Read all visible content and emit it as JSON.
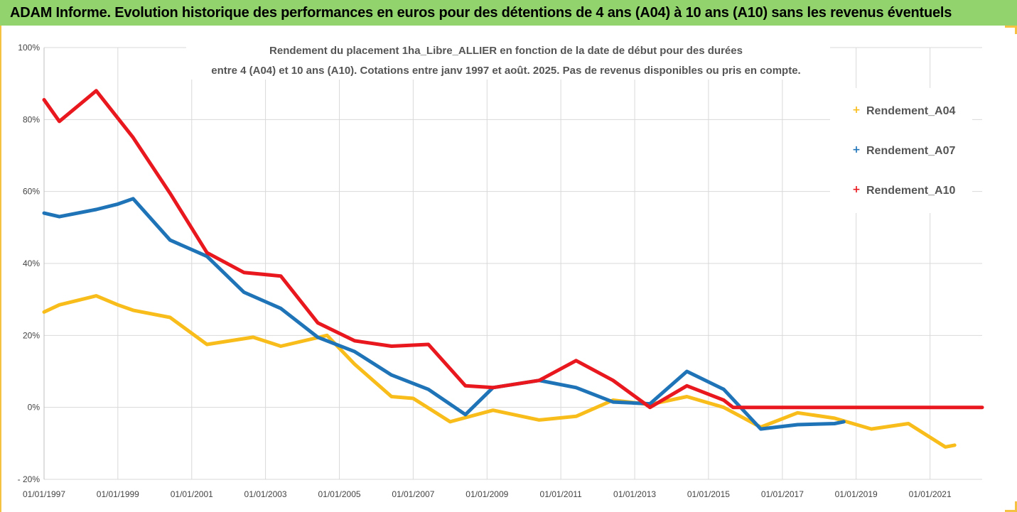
{
  "banner": {
    "title": "ADAM Informe. Evolution historique des performances en euros pour des détentions de 4 ans (A04) à 10 ans (A10) sans les revenus éventuels"
  },
  "colors": {
    "banner_bg": "#92d36e",
    "frame": "#f5c242",
    "A04": "#f8bd1a",
    "A07": "#1f74b8",
    "A10": "#e8181e",
    "grid": "#d9d9d9"
  },
  "chart_data": {
    "type": "line",
    "title_lines": [
      "Rendement du placement 1ha_Libre_ALLIER en fonction de la date de début pour des durées",
      "entre 4 (A04) et 10 ans (A10). Cotations entre janv 1997 et août. 2025. Pas de revenus disponibles ou pris en compte."
    ],
    "xlabel": "",
    "ylabel": "",
    "ylim": [
      -20,
      100
    ],
    "xlim": [
      "1997-01-01",
      "2022-06-01"
    ],
    "y_ticks": [
      "100%",
      "80%",
      "60%",
      "40%",
      "20%",
      "0%",
      "- 20%"
    ],
    "y_tick_values": [
      100,
      80,
      60,
      40,
      20,
      0,
      -20
    ],
    "x_ticks": [
      "01/01/1997",
      "01/01/1999",
      "01/01/2001",
      "01/01/2003",
      "01/01/2005",
      "01/01/2007",
      "01/01/2009",
      "01/01/2011",
      "01/01/2013",
      "01/01/2015",
      "01/01/2017",
      "01/01/2019",
      "01/01/2021"
    ],
    "x_tick_values": [
      "1997-01-01",
      "1999-01-01",
      "2001-01-01",
      "2003-01-01",
      "2005-01-01",
      "2007-01-01",
      "2009-01-01",
      "2011-01-01",
      "2013-01-01",
      "2015-01-01",
      "2017-01-01",
      "2019-01-01",
      "2021-01-01"
    ],
    "grid": true,
    "legend_position": "right",
    "series": [
      {
        "name": "Rendement_A04",
        "color": "#f8bd1a",
        "points": [
          [
            "1997-01-01",
            26.5
          ],
          [
            "1997-06-01",
            28.5
          ],
          [
            "1998-06-01",
            31.0
          ],
          [
            "1999-01-01",
            28.5
          ],
          [
            "1999-06-01",
            27.0
          ],
          [
            "2000-06-01",
            25.0
          ],
          [
            "2001-06-01",
            17.5
          ],
          [
            "2002-09-01",
            19.5
          ],
          [
            "2003-06-01",
            17.0
          ],
          [
            "2004-09-01",
            20.0
          ],
          [
            "2005-06-01",
            12.0
          ],
          [
            "2006-06-01",
            3.0
          ],
          [
            "2007-01-01",
            2.5
          ],
          [
            "2008-01-01",
            -4.0
          ],
          [
            "2009-03-01",
            -0.8
          ],
          [
            "2010-06-01",
            -3.5
          ],
          [
            "2011-06-01",
            -2.5
          ],
          [
            "2012-06-01",
            2.0
          ],
          [
            "2013-06-01",
            0.8
          ],
          [
            "2014-06-01",
            3.0
          ],
          [
            "2015-06-01",
            0.0
          ],
          [
            "2016-06-01",
            -5.5
          ],
          [
            "2017-06-01",
            -1.5
          ],
          [
            "2018-06-01",
            -3.0
          ],
          [
            "2019-06-01",
            -6.0
          ],
          [
            "2020-06-01",
            -4.5
          ],
          [
            "2021-06-01",
            -11.0
          ],
          [
            "2021-09-01",
            -10.5
          ]
        ]
      },
      {
        "name": "Rendement_A07",
        "color": "#1f74b8",
        "points": [
          [
            "1997-01-01",
            54.0
          ],
          [
            "1997-06-01",
            53.0
          ],
          [
            "1998-06-01",
            55.0
          ],
          [
            "1999-01-01",
            56.5
          ],
          [
            "1999-06-01",
            58.0
          ],
          [
            "2000-06-01",
            46.5
          ],
          [
            "2001-06-01",
            42.0
          ],
          [
            "2002-06-01",
            32.0
          ],
          [
            "2003-06-01",
            27.5
          ],
          [
            "2004-06-01",
            19.5
          ],
          [
            "2005-06-01",
            15.5
          ],
          [
            "2006-06-01",
            9.0
          ],
          [
            "2007-06-01",
            5.0
          ],
          [
            "2008-06-01",
            -2.0
          ],
          [
            "2009-03-01",
            5.5
          ],
          [
            "2010-06-01",
            7.5
          ],
          [
            "2011-06-01",
            5.5
          ],
          [
            "2012-06-01",
            1.5
          ],
          [
            "2013-06-01",
            1.0
          ],
          [
            "2014-06-01",
            10.0
          ],
          [
            "2015-06-01",
            5.0
          ],
          [
            "2016-06-01",
            -6.0
          ],
          [
            "2017-06-01",
            -4.8
          ],
          [
            "2018-06-01",
            -4.5
          ],
          [
            "2018-09-01",
            -4.0
          ]
        ]
      },
      {
        "name": "Rendement_A10",
        "color": "#e8181e",
        "points": [
          [
            "1997-01-01",
            85.5
          ],
          [
            "1997-06-01",
            79.5
          ],
          [
            "1998-06-01",
            88.0
          ],
          [
            "1999-06-01",
            75.0
          ],
          [
            "2000-06-01",
            59.5
          ],
          [
            "2001-06-01",
            43.0
          ],
          [
            "2002-06-01",
            37.5
          ],
          [
            "2003-06-01",
            36.5
          ],
          [
            "2004-06-01",
            23.5
          ],
          [
            "2005-06-01",
            18.5
          ],
          [
            "2006-06-01",
            17.0
          ],
          [
            "2007-06-01",
            17.5
          ],
          [
            "2008-06-01",
            6.0
          ],
          [
            "2009-03-01",
            5.5
          ],
          [
            "2010-06-01",
            7.5
          ],
          [
            "2011-06-01",
            13.0
          ],
          [
            "2012-06-01",
            7.5
          ],
          [
            "2013-06-01",
            0.0
          ],
          [
            "2014-06-01",
            6.0
          ],
          [
            "2015-06-01",
            2.0
          ],
          [
            "2015-09-01",
            0.0
          ],
          [
            "2022-06-01",
            0.0
          ]
        ]
      }
    ]
  }
}
